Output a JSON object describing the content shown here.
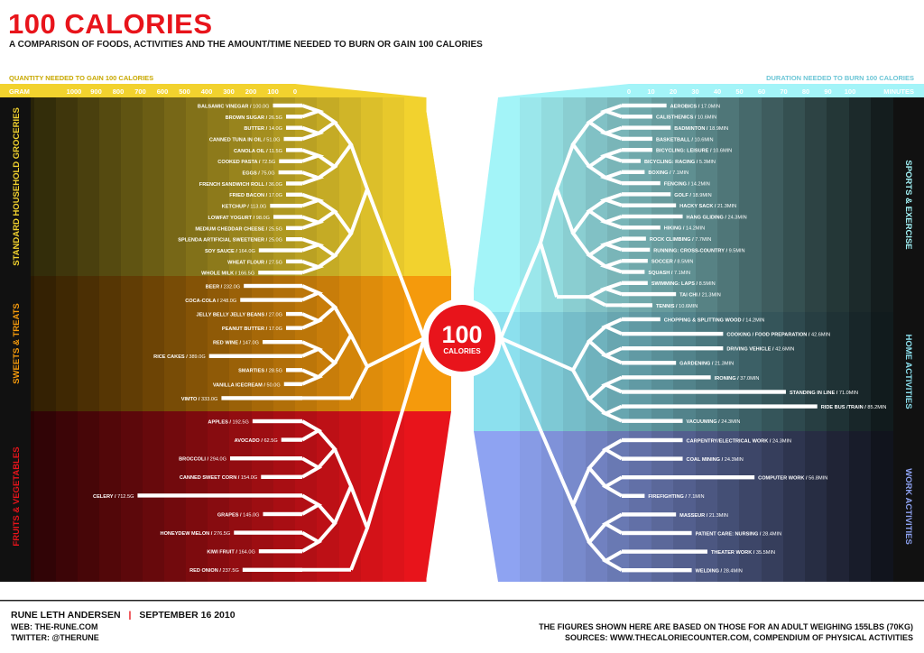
{
  "title": "100 CALORIES",
  "subtitle": "A COMPARISON OF FOODS, ACTIVITIES AND THE AMOUNT/TIME NEEDED TO BURN OR GAIN 100 CALORIES",
  "center_label": {
    "number": "100",
    "word": "CALORIES"
  },
  "footer": {
    "author": "RUNE LETH ANDERSEN",
    "separator": "|",
    "date": "SEPTEMBER 16 2010",
    "web": "WEB: THE-RUNE.COM",
    "twitter": "TWITTER: @THERUNE",
    "note": "THE FIGURES SHOWN HERE ARE BASED ON THOSE FOR AN ADULT WEIGHING 155LBS (70KG)",
    "sources": "SOURCES: WWW.THECALORIECOUNTER.COM, COMPENDIUM OF PHYSICAL ACTIVITIES"
  },
  "colors": {
    "groceries": "#f2d22e",
    "sweets": "#f59a0c",
    "fruits": "#e8141b",
    "sports": "#a3f4f8",
    "home": "#8ce0ee",
    "work": "#8ea3f2",
    "title": "#e8141b"
  },
  "chart_data": [
    {
      "type": "bar",
      "orientation": "horizontal",
      "title": "QUANTITY NEEDED TO GAIN 100 CALORIES",
      "xlabel": "GRAM",
      "xlim": [
        1000,
        0
      ],
      "ticks": [
        "1000",
        "900",
        "800",
        "700",
        "600",
        "500",
        "400",
        "300",
        "200",
        "100",
        "0"
      ],
      "groups": [
        {
          "name": "STANDARD HOUSEHOLD GROCERIES",
          "items": [
            {
              "label": "BALSAMIC VINEGAR",
              "value_label": "100.0G",
              "value": 100.0
            },
            {
              "label": "BROWN SUGAR",
              "value_label": "26.5G",
              "value": 26.5
            },
            {
              "label": "BUTTER",
              "value_label": "14.0G",
              "value": 14.0
            },
            {
              "label": "CANNED TUNA IN OIL",
              "value_label": "51.0G",
              "value": 51.0
            },
            {
              "label": "CANOLA OIL",
              "value_label": "11.5G",
              "value": 11.5
            },
            {
              "label": "COOKED PASTA",
              "value_label": "72.5G",
              "value": 72.5
            },
            {
              "label": "EGGS",
              "value_label": "75.0G",
              "value": 75.0
            },
            {
              "label": "FRENCH SANDWICH ROLL",
              "value_label": "36.0G",
              "value": 36.0
            },
            {
              "label": "FRIED BACON",
              "value_label": "17.0G",
              "value": 17.0
            },
            {
              "label": "KETCHUP",
              "value_label": "113.0G",
              "value": 113.0
            },
            {
              "label": "LOWFAT YOGURT",
              "value_label": "98.0G",
              "value": 98.0
            },
            {
              "label": "MEDIUM CHEDDAR CHEESE",
              "value_label": "25.5G",
              "value": 25.5
            },
            {
              "label": "SPLENDA ARTIFICIAL SWEETENER",
              "value_label": "25.0G",
              "value": 25.0
            },
            {
              "label": "SOY SAUCE",
              "value_label": "164.0G",
              "value": 164.0
            },
            {
              "label": "WHEAT FLOUR",
              "value_label": "27.5G",
              "value": 27.5
            },
            {
              "label": "WHOLE MILK",
              "value_label": "166.5G",
              "value": 166.5
            }
          ]
        },
        {
          "name": "SWEETS & TREATS",
          "items": [
            {
              "label": "BEER",
              "value_label": "232.0G",
              "value": 232.0
            },
            {
              "label": "COCA-COLA",
              "value_label": "248.0G",
              "value": 248.0
            },
            {
              "label": "JELLY BELLY JELLY BEANS",
              "value_label": "27.0G",
              "value": 27.0
            },
            {
              "label": "PEANUT BUTTER",
              "value_label": "17.0G",
              "value": 17.0
            },
            {
              "label": "RED WINE",
              "value_label": "147.0G",
              "value": 147.0
            },
            {
              "label": "RICE CAKES",
              "value_label": "389.0G",
              "value": 389.0
            },
            {
              "label": "SMARTIES",
              "value_label": "28.5G",
              "value": 28.5
            },
            {
              "label": "VANILLA ICECREAM",
              "value_label": "50.0G",
              "value": 50.0
            },
            {
              "label": "VIMTO",
              "value_label": "333.0G",
              "value": 333.0
            }
          ]
        },
        {
          "name": "FRUITS & VEGETABLES",
          "items": [
            {
              "label": "APPLES",
              "value_label": "192.5G",
              "value": 192.5
            },
            {
              "label": "AVOCADO",
              "value_label": "62.5G",
              "value": 62.5
            },
            {
              "label": "BROCCOLI",
              "value_label": "294.0G",
              "value": 294.0
            },
            {
              "label": "CANNED SWEET CORN",
              "value_label": "154.0G",
              "value": 154.0
            },
            {
              "label": "CELERY",
              "value_label": "712.5G",
              "value": 712.5
            },
            {
              "label": "GRAPES",
              "value_label": "145.0G",
              "value": 145.0
            },
            {
              "label": "HONEYDEW MELON",
              "value_label": "276.5G",
              "value": 276.5
            },
            {
              "label": "KIWI FRUIT",
              "value_label": "164.0G",
              "value": 164.0
            },
            {
              "label": "RED ONION",
              "value_label": "237.5G",
              "value": 237.5
            }
          ]
        }
      ]
    },
    {
      "type": "bar",
      "orientation": "horizontal",
      "title": "DURATION NEEDED TO BURN 100 CALORIES",
      "xlabel": "MINUTES",
      "xlim": [
        0,
        100
      ],
      "ticks": [
        "0",
        "10",
        "20",
        "30",
        "40",
        "50",
        "60",
        "70",
        "80",
        "90",
        "100"
      ],
      "groups": [
        {
          "name": "SPORTS & EXERCISE",
          "items": [
            {
              "label": "AEROBICS",
              "value_label": "17.0MIN",
              "value": 17.0
            },
            {
              "label": "CALISTHENICS",
              "value_label": "10.6MIN",
              "value": 10.6
            },
            {
              "label": "BADMINTON",
              "value_label": "18.9MIN",
              "value": 18.9
            },
            {
              "label": "BASKETBALL",
              "value_label": "10.6MIN",
              "value": 10.6
            },
            {
              "label": "BICYCLING: LEISURE",
              "value_label": "10.6MIN",
              "value": 10.6
            },
            {
              "label": "BICYCLING: RACING",
              "value_label": "5.3MIN",
              "value": 5.3
            },
            {
              "label": "BOXING",
              "value_label": "7.1MIN",
              "value": 7.1
            },
            {
              "label": "FENCING",
              "value_label": "14.2MIN",
              "value": 14.2
            },
            {
              "label": "GOLF",
              "value_label": "18.9MIN",
              "value": 18.9
            },
            {
              "label": "HACKY SACK",
              "value_label": "21.3MIN",
              "value": 21.3
            },
            {
              "label": "HANG GLIDING",
              "value_label": "24.3MIN",
              "value": 24.3
            },
            {
              "label": "HIKING",
              "value_label": "14.2MIN",
              "value": 14.2
            },
            {
              "label": "ROCK CLIMBING",
              "value_label": "7.7MIN",
              "value": 7.7
            },
            {
              "label": "RUNNING: CROSS-COUNTRY",
              "value_label": "9.5MIN",
              "value": 9.5
            },
            {
              "label": "SOCCER",
              "value_label": "8.5MIN",
              "value": 8.5
            },
            {
              "label": "SQUASH",
              "value_label": "7.1MIN",
              "value": 7.1
            },
            {
              "label": "SWIMMING: LAPS",
              "value_label": "8.5MIN",
              "value": 8.5
            },
            {
              "label": "TAI CHI",
              "value_label": "21.3MIN",
              "value": 21.3
            },
            {
              "label": "TENNIS",
              "value_label": "10.6MIN",
              "value": 10.6
            }
          ]
        },
        {
          "name": "HOME ACTIVITIES",
          "items": [
            {
              "label": "CHOPPING & SPLITTING WOOD",
              "value_label": "14.2MIN",
              "value": 14.2
            },
            {
              "label": "COOKING / FOOD PREPARATION",
              "value_label": "42.6MIN",
              "value": 42.6
            },
            {
              "label": "DRIVING VEHICLE",
              "value_label": "42.6MIN",
              "value": 42.6
            },
            {
              "label": "GARDENING",
              "value_label": "21.3MIN",
              "value": 21.3
            },
            {
              "label": "IRONING",
              "value_label": "37.0MIN",
              "value": 37.0
            },
            {
              "label": "STANDING IN LINE",
              "value_label": "71.0MIN",
              "value": 71.0
            },
            {
              "label": "RIDE BUS /TRAIN",
              "value_label": "85.2MIN",
              "value": 85.2
            },
            {
              "label": "VACUUMING",
              "value_label": "24.3MIN",
              "value": 24.3
            }
          ]
        },
        {
          "name": "WORK ACTIVITIES",
          "items": [
            {
              "label": "CARPENTRY/ELECTRICAL WORK",
              "value_label": "24.3MIN",
              "value": 24.3
            },
            {
              "label": "COAL MINING",
              "value_label": "24.3MIN",
              "value": 24.3
            },
            {
              "label": "COMPUTER WORK",
              "value_label": "56.8MIN",
              "value": 56.8
            },
            {
              "label": "FIREFIGHTING",
              "value_label": "7.1MIN",
              "value": 7.1
            },
            {
              "label": "MASSEUR",
              "value_label": "21.3MIN",
              "value": 21.3
            },
            {
              "label": "PATIENT CARE: NURSING",
              "value_label": "28.4MIN",
              "value": 28.4
            },
            {
              "label": "THEATER WORK",
              "value_label": "35.5MIN",
              "value": 35.5
            },
            {
              "label": "WELDING",
              "value_label": "28.4MIN",
              "value": 28.4
            }
          ]
        }
      ]
    }
  ]
}
